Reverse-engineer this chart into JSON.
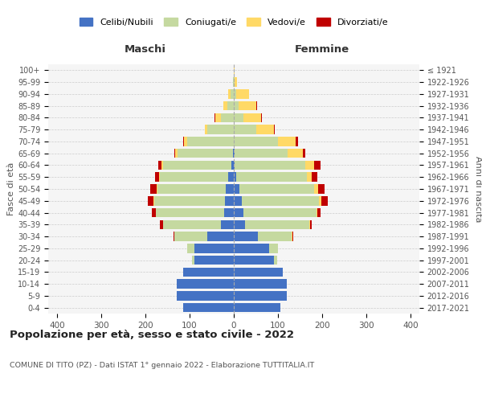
{
  "age_groups": [
    "0-4",
    "5-9",
    "10-14",
    "15-19",
    "20-24",
    "25-29",
    "30-34",
    "35-39",
    "40-44",
    "45-49",
    "50-54",
    "55-59",
    "60-64",
    "65-69",
    "70-74",
    "75-79",
    "80-84",
    "85-89",
    "90-94",
    "95-99",
    "100+"
  ],
  "birth_years": [
    "2017-2021",
    "2012-2016",
    "2007-2011",
    "2002-2006",
    "1997-2001",
    "1992-1996",
    "1987-1991",
    "1982-1986",
    "1977-1981",
    "1972-1976",
    "1967-1971",
    "1962-1966",
    "1957-1961",
    "1952-1956",
    "1947-1951",
    "1942-1946",
    "1937-1941",
    "1932-1936",
    "1927-1931",
    "1922-1926",
    "≤ 1921"
  ],
  "male": {
    "celibi": [
      115,
      130,
      130,
      115,
      90,
      90,
      60,
      30,
      22,
      20,
      18,
      12,
      5,
      2,
      0,
      0,
      0,
      0,
      0,
      0,
      0
    ],
    "coniugati": [
      0,
      0,
      0,
      0,
      5,
      15,
      75,
      130,
      155,
      160,
      155,
      155,
      155,
      125,
      105,
      60,
      30,
      15,
      8,
      2,
      0
    ],
    "vedovi": [
      0,
      0,
      0,
      0,
      0,
      0,
      0,
      0,
      0,
      2,
      2,
      2,
      3,
      5,
      8,
      5,
      12,
      8,
      5,
      0,
      0
    ],
    "divorziati": [
      0,
      0,
      0,
      0,
      0,
      0,
      2,
      8,
      8,
      12,
      15,
      10,
      8,
      2,
      2,
      0,
      2,
      0,
      0,
      0,
      0
    ]
  },
  "female": {
    "nubili": [
      105,
      120,
      120,
      110,
      90,
      80,
      55,
      25,
      22,
      18,
      12,
      5,
      2,
      2,
      0,
      0,
      0,
      0,
      0,
      0,
      0
    ],
    "coniugate": [
      0,
      0,
      0,
      0,
      8,
      20,
      75,
      145,
      165,
      175,
      170,
      160,
      160,
      120,
      100,
      50,
      22,
      10,
      5,
      2,
      0
    ],
    "vedove": [
      0,
      0,
      0,
      0,
      0,
      0,
      2,
      2,
      2,
      5,
      8,
      12,
      20,
      35,
      40,
      40,
      40,
      40,
      30,
      5,
      2
    ],
    "divorziate": [
      0,
      0,
      0,
      0,
      0,
      0,
      2,
      5,
      8,
      15,
      15,
      12,
      15,
      5,
      5,
      2,
      2,
      2,
      0,
      0,
      0
    ]
  },
  "colors": {
    "celibi": "#4472C4",
    "coniugati": "#C5D9A0",
    "vedovi": "#FFD966",
    "divorziati": "#C00000"
  },
  "xlim": 420,
  "title": "Popolazione per età, sesso e stato civile - 2022",
  "subtitle": "COMUNE DI TITO (PZ) - Dati ISTAT 1° gennaio 2022 - Elaborazione TUTTITALIA.IT",
  "xlabel_left": "Maschi",
  "xlabel_right": "Femmine",
  "ylabel_left": "Fasce di età",
  "ylabel_right": "Anni di nascita",
  "legend_labels": [
    "Celibi/Nubili",
    "Coniugati/e",
    "Vedovi/e",
    "Divorziati/e"
  ],
  "bg_color": "#ffffff",
  "plot_bg_color": "#f5f5f5"
}
